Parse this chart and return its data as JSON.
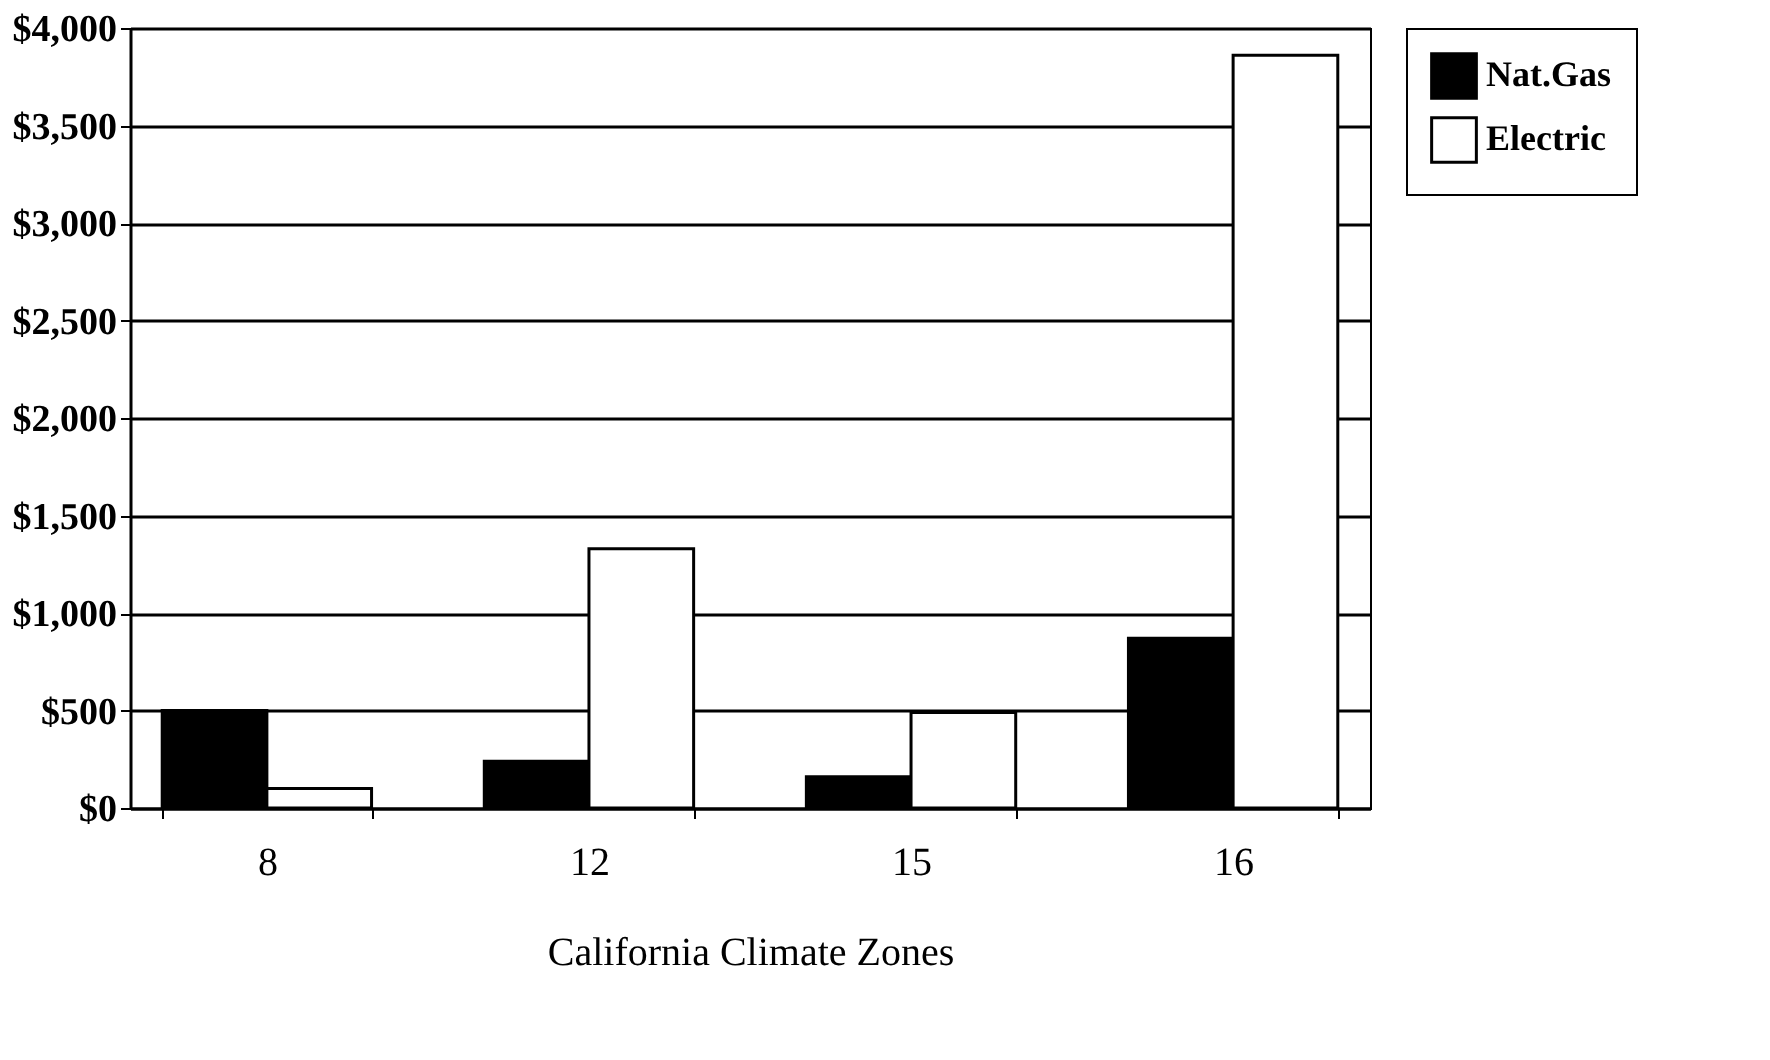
{
  "chart_data": {
    "type": "bar",
    "xlabel": "California Climate Zones",
    "categories": [
      "8",
      "12",
      "15",
      "16"
    ],
    "series": [
      {
        "name": "Nat.Gas",
        "color": "#000000",
        "values": [
          500,
          240,
          160,
          870
        ]
      },
      {
        "name": "Electric",
        "color": "#ffffff",
        "values": [
          100,
          1330,
          490,
          3860
        ]
      }
    ],
    "ylim": [
      0,
      4000
    ],
    "yticks": [
      {
        "value": 0,
        "label": "$0"
      },
      {
        "value": 500,
        "label": "$500"
      },
      {
        "value": 1000,
        "label": "$1,000"
      },
      {
        "value": 1500,
        "label": "$1,500"
      },
      {
        "value": 2000,
        "label": "$2,000"
      },
      {
        "value": 2500,
        "label": "$2,500"
      },
      {
        "value": 3000,
        "label": "$3,000"
      },
      {
        "value": 3500,
        "label": "$3,500"
      },
      {
        "value": 4000,
        "label": "$4,000"
      }
    ],
    "grid": "y",
    "legend": "right"
  }
}
